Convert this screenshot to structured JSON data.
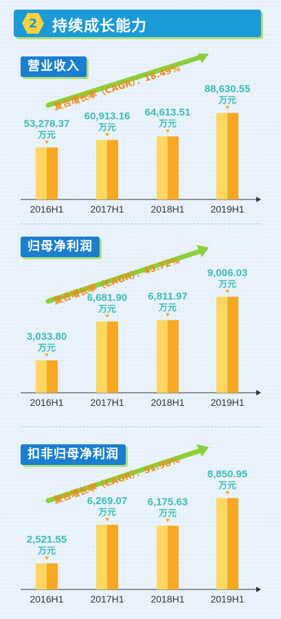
{
  "header": {
    "number": "2",
    "title": "持续成长能力"
  },
  "unit": "万元",
  "chart_data": [
    {
      "type": "bar",
      "title": "营业收入",
      "cagr_label": "复合增长率（CAGR）：18.49%",
      "categories": [
        "2016H1",
        "2017H1",
        "2018H1",
        "2019H1"
      ],
      "values": [
        53278.37,
        60913.16,
        64613.51,
        88630.55
      ],
      "value_labels": [
        "53,278.37",
        "60,913.16",
        "64,613.51",
        "88,630.55"
      ],
      "ylim": [
        0,
        100000
      ]
    },
    {
      "type": "bar",
      "title": "归母净利润",
      "cagr_label": "复合增长率（CAGR）：43.72%",
      "categories": [
        "2016H1",
        "2017H1",
        "2018H1",
        "2019H1"
      ],
      "values": [
        3033.8,
        6681.9,
        6811.97,
        9006.03
      ],
      "value_labels": [
        "3,033.80",
        "6,681.90",
        "6,811.97",
        "9,006.03"
      ],
      "ylim": [
        0,
        10000
      ]
    },
    {
      "type": "bar",
      "title": "扣非归母净利润",
      "cagr_label": "复合增长率（CAGR）：51.98%",
      "categories": [
        "2016H1",
        "2017H1",
        "2018H1",
        "2019H1"
      ],
      "values": [
        2521.55,
        6269.07,
        6175.63,
        8850.95
      ],
      "value_labels": [
        "2,521.55",
        "6,269.07",
        "6,175.63",
        "8,850.95"
      ],
      "ylim": [
        0,
        10000
      ]
    }
  ],
  "colors": {
    "header_bg": "#1a9bd8",
    "title_bg": "#1a7fd0",
    "bar_light": "#ffd760",
    "bar_dark": "#f7a823",
    "value_text": "#3cbdb4",
    "cagr_text": "#f08a1c",
    "arrow": "#8ccf3a"
  }
}
